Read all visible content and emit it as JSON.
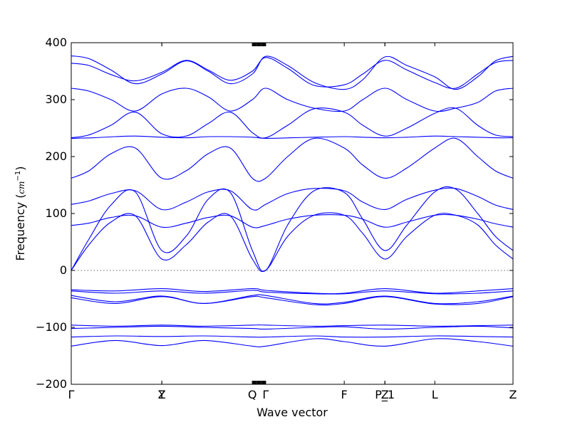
{
  "chart_data": {
    "type": "line",
    "title": "",
    "xlabel": "Wave vector",
    "ylabel_text": "Frequency (",
    "ylabel_unit": "cm",
    "ylabel_exp": "−1",
    "ylabel_close": ")",
    "ylim": [
      -200,
      400
    ],
    "yticks": [
      -200,
      -100,
      0,
      100,
      200,
      300,
      400
    ],
    "xlim": [
      0,
      1
    ],
    "high_symmetry_points": [
      {
        "label": "Γ",
        "x": 0.0
      },
      {
        "label": "Z",
        "x": 0.205
      },
      {
        "label": "Y",
        "x": 0.205
      },
      {
        "label": "Q",
        "x": 0.41
      },
      {
        "label": "Γ",
        "x": 0.44
      },
      {
        "label": "F",
        "x": 0.618
      },
      {
        "label": "P_1",
        "x": 0.71
      },
      {
        "label": "Z",
        "x": 0.71
      },
      {
        "label": "L",
        "x": 0.823
      },
      {
        "label": "Z",
        "x": 1.0
      }
    ],
    "dense_tick_region": [
      0.41,
      0.44
    ],
    "zero_line": true,
    "grid": false,
    "line_color": "#0000ff",
    "series": [
      {
        "values_x": [
          0,
          0.04,
          0.09,
          0.145,
          0.205,
          0.26,
          0.31,
          0.36,
          0.41,
          0.44,
          0.49,
          0.55,
          0.618,
          0.66,
          0.71,
          0.76,
          0.823,
          0.87,
          0.92,
          0.96,
          1.0
        ],
        "values_y": [
          377,
          372,
          352,
          328,
          345,
          368,
          350,
          328,
          345,
          376,
          360,
          330,
          318,
          335,
          375,
          360,
          340,
          318,
          340,
          368,
          376
        ]
      },
      {
        "values_x": [
          0,
          0.04,
          0.09,
          0.145,
          0.205,
          0.26,
          0.31,
          0.36,
          0.41,
          0.44,
          0.49,
          0.55,
          0.618,
          0.66,
          0.71,
          0.76,
          0.823,
          0.87,
          0.92,
          0.96,
          1.0
        ],
        "values_y": [
          364,
          360,
          344,
          333,
          348,
          369,
          352,
          334,
          350,
          374,
          355,
          325,
          326,
          345,
          369,
          352,
          330,
          320,
          345,
          365,
          369
        ]
      },
      {
        "values_x": [
          0,
          0.04,
          0.09,
          0.145,
          0.205,
          0.26,
          0.31,
          0.36,
          0.41,
          0.44,
          0.49,
          0.55,
          0.618,
          0.66,
          0.71,
          0.76,
          0.823,
          0.87,
          0.92,
          0.96,
          1.0
        ],
        "values_y": [
          320,
          315,
          300,
          280,
          310,
          320,
          305,
          280,
          300,
          320,
          300,
          285,
          280,
          300,
          320,
          300,
          280,
          285,
          295,
          315,
          320
        ]
      },
      {
        "values_x": [
          0,
          0.04,
          0.09,
          0.145,
          0.205,
          0.26,
          0.31,
          0.36,
          0.41,
          0.44,
          0.49,
          0.55,
          0.618,
          0.66,
          0.71,
          0.76,
          0.823,
          0.87,
          0.92,
          0.96,
          1.0
        ],
        "values_y": [
          233,
          238,
          255,
          278,
          240,
          236,
          258,
          278,
          242,
          233,
          255,
          284,
          278,
          255,
          236,
          250,
          276,
          285,
          255,
          238,
          235
        ]
      },
      {
        "values_x": [
          0,
          0.05,
          0.1,
          0.145,
          0.205,
          0.26,
          0.31,
          0.36,
          0.41,
          0.44,
          0.5,
          0.55,
          0.618,
          0.66,
          0.71,
          0.76,
          0.823,
          0.87,
          0.92,
          0.96,
          1.0
        ],
        "values_y": [
          232,
          233,
          235,
          236,
          234,
          233,
          235,
          235,
          234,
          232,
          233,
          234,
          235,
          234,
          233,
          234,
          236,
          235,
          234,
          233,
          233
        ]
      },
      {
        "values_x": [
          0,
          0.04,
          0.09,
          0.145,
          0.205,
          0.26,
          0.31,
          0.36,
          0.41,
          0.44,
          0.49,
          0.55,
          0.618,
          0.66,
          0.71,
          0.76,
          0.823,
          0.87,
          0.92,
          0.96,
          1.0
        ],
        "values_y": [
          162,
          175,
          205,
          215,
          162,
          175,
          205,
          215,
          162,
          162,
          200,
          232,
          215,
          185,
          162,
          180,
          215,
          232,
          200,
          175,
          162
        ]
      },
      {
        "values_x": [
          0,
          0.04,
          0.09,
          0.145,
          0.205,
          0.26,
          0.31,
          0.36,
          0.41,
          0.44,
          0.49,
          0.55,
          0.618,
          0.66,
          0.71,
          0.76,
          0.823,
          0.87,
          0.92,
          0.96,
          1.0
        ],
        "values_y": [
          116,
          122,
          135,
          140,
          107,
          120,
          138,
          140,
          107,
          116,
          135,
          144,
          140,
          120,
          107,
          125,
          141,
          144,
          130,
          115,
          107
        ]
      },
      {
        "values_x": [
          0,
          0.04,
          0.09,
          0.145,
          0.205,
          0.26,
          0.31,
          0.36,
          0.41,
          0.44,
          0.49,
          0.55,
          0.618,
          0.66,
          0.71,
          0.76,
          0.823,
          0.87,
          0.92,
          0.96,
          1.0
        ],
        "values_y": [
          0,
          55,
          115,
          138,
          35,
          60,
          125,
          137,
          35,
          0,
          80,
          140,
          137,
          90,
          35,
          80,
          138,
          143,
          100,
          60,
          35
        ]
      },
      {
        "values_x": [
          0,
          0.04,
          0.09,
          0.145,
          0.205,
          0.26,
          0.31,
          0.36,
          0.41,
          0.44,
          0.49,
          0.55,
          0.618,
          0.66,
          0.71,
          0.76,
          0.823,
          0.87,
          0.92,
          0.96,
          1.0
        ],
        "values_y": [
          0,
          45,
          85,
          96,
          20,
          45,
          85,
          96,
          20,
          0,
          60,
          97,
          97,
          65,
          20,
          60,
          97,
          97,
          80,
          45,
          20
        ]
      },
      {
        "values_x": [
          0,
          0.04,
          0.09,
          0.145,
          0.205,
          0.26,
          0.31,
          0.36,
          0.41,
          0.44,
          0.49,
          0.55,
          0.618,
          0.66,
          0.71,
          0.76,
          0.823,
          0.87,
          0.92,
          0.96,
          1.0
        ],
        "values_y": [
          79,
          83,
          93,
          96,
          76,
          83,
          93,
          96,
          76,
          79,
          90,
          97,
          97,
          90,
          76,
          85,
          97,
          97,
          90,
          82,
          76
        ]
      },
      {
        "values_x": [
          0,
          0.1,
          0.205,
          0.3,
          0.41,
          0.44,
          0.55,
          0.618,
          0.71,
          0.823,
          0.92,
          1.0
        ],
        "values_y": [
          -34,
          -36,
          -32,
          -37,
          -32,
          -35,
          -40,
          -40,
          -32,
          -40,
          -36,
          -32
        ]
      },
      {
        "values_x": [
          0,
          0.1,
          0.205,
          0.3,
          0.41,
          0.44,
          0.55,
          0.618,
          0.71,
          0.823,
          0.92,
          1.0
        ],
        "values_y": [
          -36,
          -40,
          -36,
          -40,
          -35,
          -38,
          -41,
          -41,
          -36,
          -41,
          -40,
          -36
        ]
      },
      {
        "values_x": [
          0,
          0.1,
          0.205,
          0.3,
          0.41,
          0.44,
          0.55,
          0.618,
          0.71,
          0.823,
          0.92,
          1.0
        ],
        "values_y": [
          -44,
          -55,
          -45,
          -58,
          -44,
          -44,
          -58,
          -56,
          -45,
          -58,
          -55,
          -45
        ]
      },
      {
        "values_x": [
          0,
          0.1,
          0.205,
          0.3,
          0.41,
          0.44,
          0.55,
          0.618,
          0.71,
          0.823,
          0.92,
          1.0
        ],
        "values_y": [
          -48,
          -58,
          -46,
          -58,
          -46,
          -48,
          -60,
          -58,
          -46,
          -59,
          -58,
          -46
        ]
      },
      {
        "values_x": [
          0,
          0.1,
          0.205,
          0.3,
          0.41,
          0.44,
          0.55,
          0.618,
          0.71,
          0.823,
          0.92,
          1.0
        ],
        "values_y": [
          -96,
          -98,
          -96,
          -98,
          -96,
          -96,
          -98,
          -97,
          -96,
          -98,
          -97,
          -96
        ]
      },
      {
        "values_x": [
          0,
          0.1,
          0.205,
          0.3,
          0.41,
          0.44,
          0.55,
          0.618,
          0.71,
          0.823,
          0.92,
          1.0
        ],
        "values_y": [
          -102,
          -100,
          -98,
          -100,
          -102,
          -103,
          -100,
          -99,
          -103,
          -100,
          -98,
          -101
        ]
      },
      {
        "values_x": [
          0,
          0.1,
          0.205,
          0.3,
          0.41,
          0.44,
          0.55,
          0.618,
          0.71,
          0.823,
          0.92,
          1.0
        ],
        "values_y": [
          -117,
          -115,
          -116,
          -115,
          -117,
          -117,
          -115,
          -117,
          -117,
          -115,
          -116,
          -117
        ]
      },
      {
        "values_x": [
          0,
          0.1,
          0.205,
          0.3,
          0.41,
          0.44,
          0.55,
          0.618,
          0.71,
          0.823,
          0.92,
          1.0
        ],
        "values_y": [
          -133,
          -123,
          -132,
          -123,
          -133,
          -133,
          -120,
          -125,
          -133,
          -120,
          -125,
          -133
        ]
      }
    ]
  }
}
